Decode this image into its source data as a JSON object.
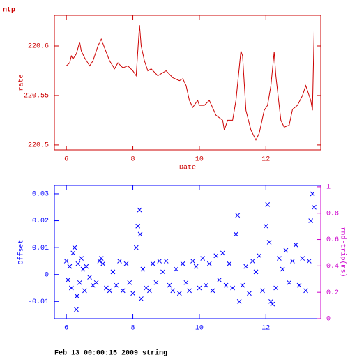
{
  "chart_data": [
    {
      "type": "line",
      "title": "ntp",
      "x_label": "Date",
      "y_label": "rate",
      "color": "#cc0000",
      "axis_color": "#cc0000",
      "x": [
        6.0,
        6.1,
        6.15,
        6.2,
        6.3,
        6.35,
        6.4,
        6.45,
        6.55,
        6.7,
        6.8,
        6.95,
        7.05,
        7.15,
        7.3,
        7.45,
        7.55,
        7.7,
        7.85,
        8.0,
        8.1,
        8.2,
        8.25,
        8.35,
        8.45,
        8.55,
        8.75,
        9.0,
        9.2,
        9.4,
        9.5,
        9.6,
        9.7,
        9.8,
        9.95,
        10.0,
        10.15,
        10.3,
        10.5,
        10.7,
        10.75,
        10.85,
        11.0,
        11.1,
        11.25,
        11.3,
        11.4,
        11.55,
        11.7,
        11.8,
        11.95,
        12.05,
        12.15,
        12.25,
        12.3,
        12.45,
        12.55,
        12.7,
        12.8,
        12.95,
        13.1,
        13.2,
        13.35,
        13.4,
        13.45
      ],
      "values": [
        220.58,
        220.583,
        220.59,
        220.587,
        220.592,
        220.598,
        220.604,
        220.595,
        220.588,
        220.58,
        220.585,
        220.6,
        220.607,
        220.598,
        220.585,
        220.577,
        220.583,
        220.578,
        220.58,
        220.575,
        220.57,
        220.621,
        220.6,
        220.585,
        220.575,
        220.577,
        220.57,
        220.575,
        220.568,
        220.565,
        220.567,
        220.56,
        220.545,
        220.538,
        220.545,
        220.54,
        220.54,
        220.545,
        220.53,
        220.525,
        220.515,
        220.525,
        220.525,
        220.545,
        220.595,
        220.59,
        220.535,
        220.515,
        220.505,
        220.512,
        220.535,
        220.54,
        220.56,
        220.594,
        220.57,
        220.525,
        220.518,
        220.52,
        220.536,
        220.54,
        220.55,
        220.56,
        220.545,
        220.535,
        220.615
      ],
      "xlim": [
        5.64,
        13.65
      ],
      "xticks": [
        6,
        8,
        10,
        12
      ],
      "ylim": [
        220.495,
        220.631
      ],
      "yticks": [
        220.5,
        220.55,
        220.6
      ]
    },
    {
      "type": "scatter",
      "marker": "x",
      "y_label": "Offset",
      "y2_label": "rnd-trip(ms)",
      "color": "#0000ff",
      "axis_color": "#0000ff",
      "y2_color": "#cc00cc",
      "x": [
        6.0,
        6.05,
        6.1,
        6.15,
        6.2,
        6.25,
        6.3,
        6.32,
        6.35,
        6.4,
        6.45,
        6.5,
        6.55,
        6.6,
        6.7,
        6.8,
        6.9,
        7.0,
        7.05,
        7.1,
        7.2,
        7.3,
        7.4,
        7.5,
        7.6,
        7.7,
        7.8,
        7.9,
        8.0,
        8.1,
        8.15,
        8.2,
        8.22,
        8.25,
        8.3,
        8.4,
        8.5,
        8.6,
        8.7,
        8.8,
        8.9,
        9.0,
        9.1,
        9.2,
        9.3,
        9.4,
        9.5,
        9.6,
        9.7,
        9.8,
        9.9,
        10.0,
        10.1,
        10.2,
        10.3,
        10.4,
        10.5,
        10.6,
        10.7,
        10.8,
        10.9,
        11.0,
        11.1,
        11.15,
        11.2,
        11.3,
        11.4,
        11.5,
        11.6,
        11.7,
        11.8,
        11.9,
        12.0,
        12.05,
        12.1,
        12.15,
        12.2,
        12.3,
        12.4,
        12.5,
        12.6,
        12.7,
        12.8,
        12.9,
        13.0,
        13.1,
        13.2,
        13.3,
        13.35,
        13.4,
        13.45
      ],
      "values": [
        0.005,
        -0.002,
        0.003,
        -0.005,
        0.008,
        0.01,
        -0.013,
        -0.008,
        0.004,
        -0.003,
        0.006,
        0.002,
        -0.006,
        0.003,
        -0.001,
        -0.004,
        -0.003,
        0.005,
        0.006,
        0.004,
        -0.005,
        -0.006,
        0.001,
        -0.004,
        0.005,
        -0.006,
        0.004,
        -0.003,
        -0.007,
        0.01,
        0.018,
        0.024,
        0.015,
        -0.009,
        0.002,
        -0.005,
        -0.006,
        0.004,
        -0.003,
        0.005,
        0.001,
        0.005,
        -0.004,
        -0.006,
        0.002,
        -0.007,
        0.004,
        -0.003,
        -0.006,
        0.005,
        0.003,
        -0.005,
        0.006,
        -0.004,
        0.004,
        -0.006,
        0.007,
        -0.002,
        0.008,
        -0.004,
        0.004,
        -0.005,
        0.015,
        0.022,
        -0.01,
        -0.004,
        0.003,
        -0.007,
        0.005,
        0.001,
        0.007,
        -0.006,
        0.018,
        0.026,
        0.012,
        -0.01,
        -0.011,
        -0.005,
        0.006,
        0.002,
        0.009,
        -0.003,
        0.005,
        0.011,
        -0.004,
        0.006,
        -0.006,
        0.005,
        0.02,
        0.03,
        0.025
      ],
      "xlim": [
        5.64,
        13.65
      ],
      "xticks": [
        6,
        8,
        10,
        12
      ],
      "ylim": [
        -0.0164,
        0.0331
      ],
      "yticks": [
        -0.01,
        0,
        0.01,
        0.02,
        0.03
      ],
      "y2lim": [
        0,
        1.01
      ],
      "y2ticks": [
        0,
        0.2,
        0.4,
        0.6,
        0.8,
        1
      ]
    }
  ],
  "footer": "Feb 13 00:00:15 2009 string"
}
